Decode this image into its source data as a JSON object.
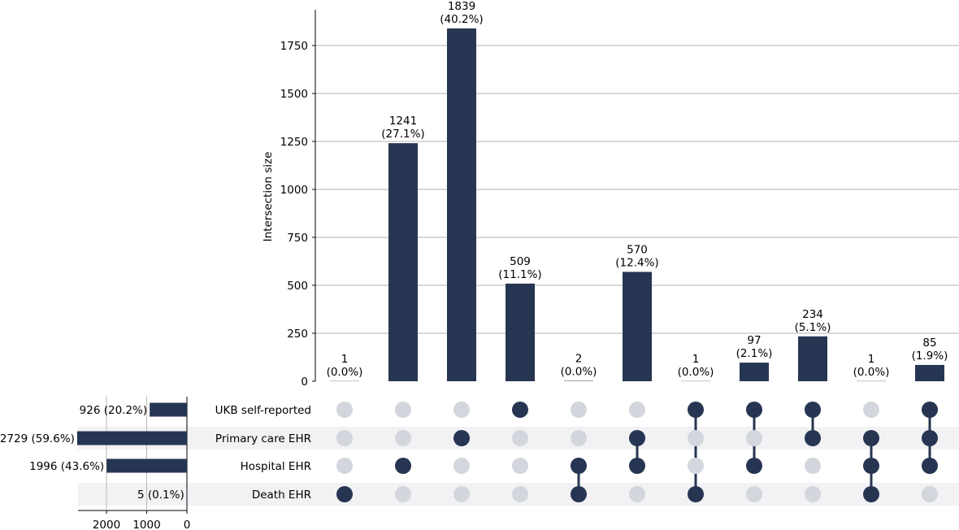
{
  "chart_data": {
    "type": "upset",
    "ylabel": "Intersection size",
    "ylim": [
      0,
      1930
    ],
    "y_ticks": [
      0,
      250,
      500,
      750,
      1000,
      1250,
      1500,
      1750
    ],
    "grid": true,
    "sets": [
      {
        "name": "UKB self-reported",
        "size": 926,
        "label": "926 (20.2%)"
      },
      {
        "name": "Primary care EHR",
        "size": 2729,
        "label": "2729 (59.6%)"
      },
      {
        "name": "Hospital EHR",
        "size": 1996,
        "label": "1996 (43.6%)"
      },
      {
        "name": "Death EHR",
        "size": 5,
        "label": "5 (0.1%)"
      }
    ],
    "set_size_ticks": [
      2000,
      1000,
      0
    ],
    "set_size_max": 2729,
    "intersections": [
      {
        "members": [
          "Death EHR"
        ],
        "value": 1,
        "label_count": "1",
        "label_pct": "(0.0%)"
      },
      {
        "members": [
          "Hospital EHR"
        ],
        "value": 1241,
        "label_count": "1241",
        "label_pct": "(27.1%)"
      },
      {
        "members": [
          "Primary care EHR"
        ],
        "value": 1839,
        "label_count": "1839",
        "label_pct": "(40.2%)"
      },
      {
        "members": [
          "UKB self-reported"
        ],
        "value": 509,
        "label_count": "509",
        "label_pct": "(11.1%)"
      },
      {
        "members": [
          "Hospital EHR",
          "Death EHR"
        ],
        "value": 2,
        "label_count": "2",
        "label_pct": "(0.0%)"
      },
      {
        "members": [
          "Primary care EHR",
          "Hospital EHR"
        ],
        "value": 570,
        "label_count": "570",
        "label_pct": "(12.4%)"
      },
      {
        "members": [
          "UKB self-reported",
          "Death EHR"
        ],
        "value": 1,
        "label_count": "1",
        "label_pct": "(0.0%)"
      },
      {
        "members": [
          "UKB self-reported",
          "Hospital EHR"
        ],
        "value": 97,
        "label_count": "97",
        "label_pct": "(2.1%)"
      },
      {
        "members": [
          "UKB self-reported",
          "Primary care EHR"
        ],
        "value": 234,
        "label_count": "234",
        "label_pct": "(5.1%)"
      },
      {
        "members": [
          "Primary care EHR",
          "Hospital EHR",
          "Death EHR"
        ],
        "value": 1,
        "label_count": "1",
        "label_pct": "(0.0%)"
      },
      {
        "members": [
          "UKB self-reported",
          "Primary care EHR",
          "Hospital EHR"
        ],
        "value": 85,
        "label_count": "85",
        "label_pct": "(1.9%)"
      }
    ],
    "colors": {
      "bar": "#263552",
      "dot_active": "#263552",
      "dot_inactive": "#d3d6dc",
      "row_shade": "#f2f2f4",
      "grid": "#b0b0b0",
      "axis": "#000000"
    }
  }
}
